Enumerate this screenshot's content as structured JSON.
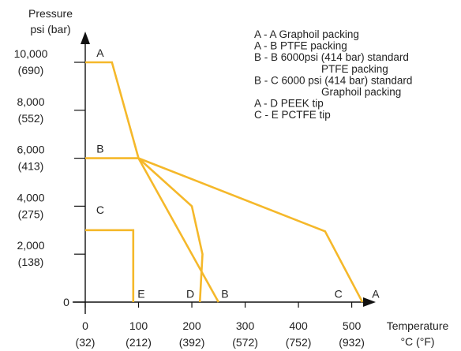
{
  "chart_data": {
    "type": "line",
    "ylabel": [
      "Pressure",
      "psi (bar)"
    ],
    "xlabel": [
      "Temperature",
      "°C (°F)"
    ],
    "xlim": [
      0,
      540
    ],
    "ylim": [
      0,
      10000
    ],
    "x_ticks": [
      {
        "value": 0,
        "label": "0",
        "sub": "(32)"
      },
      {
        "value": 100,
        "label": "100",
        "sub": "(212)"
      },
      {
        "value": 200,
        "label": "200",
        "sub": "(392)"
      },
      {
        "value": 300,
        "label": "300",
        "sub": "(572)"
      },
      {
        "value": 400,
        "label": "400",
        "sub": "(752)"
      },
      {
        "value": 500,
        "label": "500",
        "sub": "(932)"
      }
    ],
    "y_ticks": [
      {
        "value": 0,
        "label": "0",
        "sub": ""
      },
      {
        "value": 2000,
        "label": "2,000",
        "sub": "(138)"
      },
      {
        "value": 4000,
        "label": "4,000",
        "sub": "(275)"
      },
      {
        "value": 6000,
        "label": "6,000",
        "sub": "(413)"
      },
      {
        "value": 8000,
        "label": "8,000",
        "sub": "(552)"
      },
      {
        "value": 10000,
        "label": "10,000",
        "sub": "(690)"
      }
    ],
    "line_color": "#f5b82a",
    "series": [
      {
        "name": "A - A",
        "points": [
          [
            0,
            10000
          ],
          [
            50,
            10000
          ],
          [
            100,
            6000
          ],
          [
            450,
            2950
          ],
          [
            520,
            0
          ]
        ]
      },
      {
        "name": "A - B",
        "points": [
          [
            100,
            6000
          ],
          [
            250,
            0
          ]
        ]
      },
      {
        "name": "B - B",
        "points": [
          [
            0,
            6000
          ],
          [
            100,
            6000
          ]
        ]
      },
      {
        "name": "B - C",
        "points": [
          [
            100,
            6000
          ],
          [
            200,
            4000
          ],
          [
            220,
            2000
          ],
          [
            215,
            0
          ]
        ]
      },
      {
        "name": "C - E",
        "points": [
          [
            0,
            3000
          ],
          [
            90,
            3000
          ],
          [
            90,
            0
          ]
        ]
      }
    ],
    "point_labels": [
      {
        "text": "A",
        "x": 28,
        "y": 10400
      },
      {
        "text": "B",
        "x": 28,
        "y": 6400
      },
      {
        "text": "C",
        "x": 28,
        "y": 3850
      },
      {
        "text": "E",
        "x": 105,
        "y": 350
      },
      {
        "text": "D",
        "x": 197,
        "y": 350
      },
      {
        "text": "B",
        "x": 262,
        "y": 350
      },
      {
        "text": "C",
        "x": 475,
        "y": 350
      },
      {
        "text": "A",
        "x": 545,
        "y": 350
      }
    ],
    "legend": [
      [
        "A - A  Graphoil packing"
      ],
      [
        "A - B  PTFE packing"
      ],
      [
        "B - B  6000psi (414 bar) standard",
        "PTFE packing"
      ],
      [
        "B - C  6000 psi (414 bar) standard",
        "Graphoil packing"
      ],
      [
        "A - D  PEEK tip"
      ],
      [
        "C - E  PCTFE tip"
      ]
    ]
  }
}
